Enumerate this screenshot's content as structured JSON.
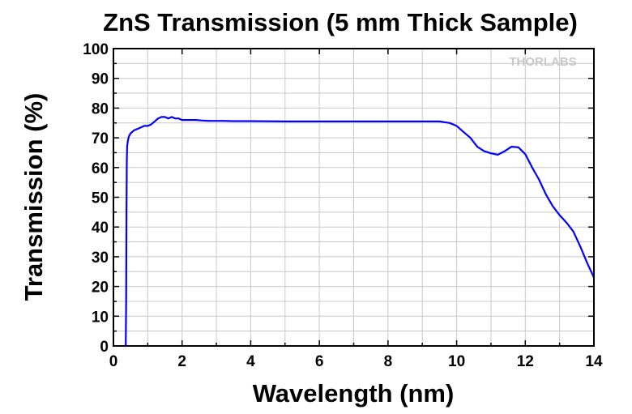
{
  "chart_data": {
    "type": "line",
    "title": "ZnS Transmission (5 mm Thick Sample)",
    "xlabel": "Wavelength (nm)",
    "ylabel": "Transmission (%)",
    "xlim": [
      0,
      14
    ],
    "ylim": [
      0,
      100
    ],
    "x_ticks": [
      "0",
      "2",
      "4",
      "6",
      "8",
      "10",
      "12",
      "14"
    ],
    "y_ticks": [
      "0",
      "10",
      "20",
      "30",
      "40",
      "50",
      "60",
      "70",
      "80",
      "90",
      "100"
    ],
    "grid": true,
    "legend": "none",
    "watermark": "THORLABS",
    "colors": {
      "series": "#0000ff",
      "grid": "#c8c8c8",
      "frame": "#000000"
    },
    "series": [
      {
        "x": [
          0.36,
          0.37,
          0.38,
          0.39,
          0.4,
          0.42,
          0.45,
          0.5,
          0.6,
          0.7,
          0.8,
          0.9,
          1.0,
          1.1,
          1.2,
          1.3,
          1.4,
          1.5,
          1.6,
          1.7,
          1.8,
          1.9,
          2.0,
          2.2,
          2.4,
          2.6,
          2.8,
          3.0,
          3.2,
          3.5,
          4.0,
          5.0,
          6.0,
          7.0,
          8.0,
          9.0,
          9.5,
          9.8,
          10.0,
          10.2,
          10.4,
          10.6,
          10.8,
          11.0,
          11.2,
          11.4,
          11.6,
          11.8,
          12.0,
          12.2,
          12.4,
          12.6,
          12.8,
          13.0,
          13.2,
          13.4,
          13.6,
          13.8,
          14.0
        ],
        "values": [
          0,
          15,
          45,
          62,
          67,
          69,
          70.5,
          71.5,
          72.5,
          73,
          73.5,
          74,
          74,
          74.5,
          75.5,
          76.5,
          77,
          77,
          76.5,
          77,
          76.5,
          76.5,
          76,
          76,
          76,
          75.8,
          75.7,
          75.7,
          75.7,
          75.6,
          75.6,
          75.5,
          75.5,
          75.5,
          75.5,
          75.5,
          75.5,
          75,
          74,
          72,
          70,
          67,
          65.5,
          64.8,
          64.3,
          65.5,
          67,
          66.8,
          64.5,
          60,
          56,
          51,
          47,
          44,
          41.5,
          38.5,
          33.5,
          28,
          23
        ]
      }
    ]
  }
}
